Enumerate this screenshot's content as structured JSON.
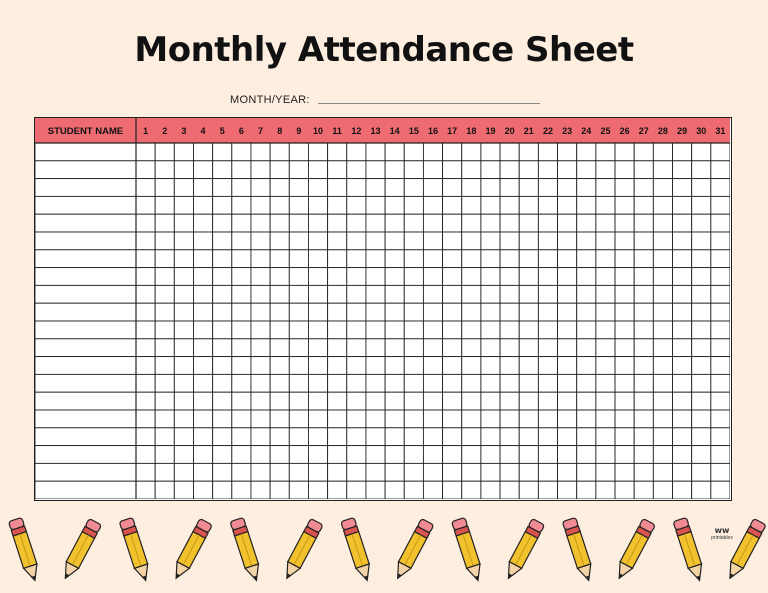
{
  "title": "Monthly Attendance Sheet",
  "month_year_label": "MONTH/YEAR:",
  "table": {
    "name_header": "STUDENT NAME",
    "days": [
      "1",
      "2",
      "3",
      "4",
      "5",
      "6",
      "7",
      "8",
      "9",
      "10",
      "11",
      "12",
      "13",
      "14",
      "15",
      "16",
      "17",
      "18",
      "19",
      "20",
      "21",
      "22",
      "23",
      "24",
      "25",
      "26",
      "27",
      "28",
      "29",
      "30",
      "31"
    ],
    "row_count": 20
  },
  "colors": {
    "background": "#fdeee0",
    "header": "#ee6b72",
    "pencil_body": "#f2c12e",
    "pencil_eraser": "#f08a93",
    "pencil_band": "#d9534f",
    "pencil_wood": "#f4d3a6"
  },
  "decoration": {
    "pencil_icon": "pencil-icon",
    "logo_icon": "printables-logo-icon",
    "logo_text": "printables"
  }
}
